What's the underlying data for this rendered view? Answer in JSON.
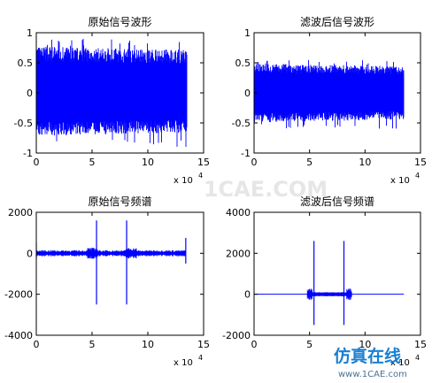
{
  "chart_data": [
    {
      "type": "line",
      "title": "原始信号波形",
      "xlim": [
        0,
        150000
      ],
      "ylim": [
        -1,
        1
      ],
      "xticks": [
        "0",
        "5",
        "10",
        "15"
      ],
      "yticks": [
        "-1",
        "-0.5",
        "0",
        "0.5",
        "1"
      ],
      "x_exponent_label": "x 10",
      "x_exponent": "4",
      "series": [
        {
          "x": [
            0,
            135000
          ],
          "envelope_upper": [
            0.7,
            0.65
          ],
          "envelope_lower": [
            -0.65,
            -0.6
          ],
          "peak_max": 0.9,
          "peak_min": -0.9,
          "color": "#0000ff"
        }
      ]
    },
    {
      "type": "line",
      "title": "滤波后信号波形",
      "xlim": [
        0,
        150000
      ],
      "ylim": [
        -1,
        1
      ],
      "xticks": [
        "0",
        "5",
        "10",
        "15"
      ],
      "yticks": [
        "-1",
        "-0.5",
        "0",
        "0.5",
        "1"
      ],
      "x_exponent_label": "x 10",
      "x_exponent": "4",
      "series": [
        {
          "x": [
            0,
            135000
          ],
          "envelope_upper": [
            0.45,
            0.4
          ],
          "envelope_lower": [
            -0.45,
            -0.4
          ],
          "peak_max": 0.55,
          "peak_min": -0.6,
          "color": "#0000ff"
        }
      ]
    },
    {
      "type": "line",
      "title": "原始信号频谱",
      "xlim": [
        0,
        150000
      ],
      "ylim": [
        -4000,
        2000
      ],
      "xticks": [
        "0",
        "5",
        "10",
        "15"
      ],
      "yticks": [
        "-4000",
        "-2000",
        "0",
        "2000"
      ],
      "x_exponent_label": "x 10",
      "x_exponent": "4",
      "series": [
        {
          "color": "#0000ff",
          "spikes": [
            {
              "x": 54000,
              "max": 1600,
              "min": -2500
            },
            {
              "x": 81000,
              "max": 1600,
              "min": -2500
            },
            {
              "x": 0,
              "max": 500,
              "min": -300
            },
            {
              "x": 134000,
              "max": 750,
              "min": -500
            }
          ],
          "noise_amplitude": 150,
          "dense_bands": [
            [
              45000,
              55000
            ],
            [
              80000,
              90000
            ]
          ]
        }
      ]
    },
    {
      "type": "line",
      "title": "滤波后信号频谱",
      "xlim": [
        0,
        150000
      ],
      "ylim": [
        -2000,
        4000
      ],
      "xticks": [
        "0",
        "5",
        "10",
        "15"
      ],
      "yticks": [
        "-2000",
        "0",
        "2000",
        "4000"
      ],
      "x_exponent_label": "x 10",
      "x_exponent": "4",
      "series": [
        {
          "color": "#0000ff",
          "spikes": [
            {
              "x": 54000,
              "max": 2600,
              "min": -1500
            },
            {
              "x": 81000,
              "max": 2600,
              "min": -1500
            }
          ],
          "band": [
            48000,
            88000
          ],
          "band_amplitude": 300,
          "baseline_extent": [
            0,
            135000
          ]
        }
      ]
    }
  ],
  "watermark": {
    "site": "www.1CAE.com",
    "brand": "仿真在线",
    "center": "1CAE.COM"
  }
}
